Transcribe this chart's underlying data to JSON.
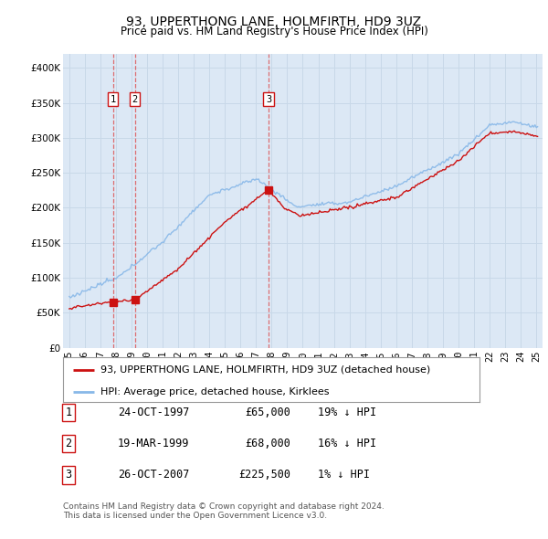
{
  "title": "93, UPPERTHONG LANE, HOLMFIRTH, HD9 3UZ",
  "subtitle": "Price paid vs. HM Land Registry's House Price Index (HPI)",
  "legend_property": "93, UPPERTHONG LANE, HOLMFIRTH, HD9 3UZ (detached house)",
  "legend_hpi": "HPI: Average price, detached house, Kirklees",
  "footer1": "Contains HM Land Registry data © Crown copyright and database right 2024.",
  "footer2": "This data is licensed under the Open Government Licence v3.0.",
  "sales": [
    {
      "num": 1,
      "date": "24-OCT-1997",
      "price": 65000,
      "year": 1997.81,
      "hpi_pct": "19% ↓ HPI"
    },
    {
      "num": 2,
      "date": "19-MAR-1999",
      "price": 68000,
      "year": 1999.22,
      "hpi_pct": "16% ↓ HPI"
    },
    {
      "num": 3,
      "date": "26-OCT-2007",
      "price": 225500,
      "year": 2007.81,
      "hpi_pct": "1% ↓ HPI"
    }
  ],
  "property_color": "#cc1111",
  "hpi_color": "#88b8e8",
  "dashed_color": "#dd4444",
  "chart_bg": "#dce8f5",
  "ylim": [
    0,
    420000
  ],
  "yticks": [
    0,
    50000,
    100000,
    150000,
    200000,
    250000,
    300000,
    350000,
    400000
  ],
  "ytick_labels": [
    "£0",
    "£50K",
    "£100K",
    "£150K",
    "£200K",
    "£250K",
    "£300K",
    "£350K",
    "£400K"
  ],
  "xlim_start": 1994.6,
  "xlim_end": 2025.4,
  "background_color": "#ffffff",
  "grid_color": "#c8d8e8"
}
